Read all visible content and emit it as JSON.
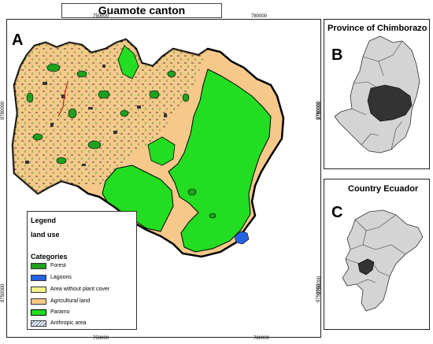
{
  "title": "Guamote canton",
  "panel_a": {
    "letter": "A",
    "top_ticks": [
      "750000",
      "780000"
    ],
    "bottom_ticks": [
      "750000",
      "780000"
    ],
    "left_ticks": [
      "9780000",
      "9750000"
    ],
    "right_ticks": [
      "9780000",
      "9750000"
    ]
  },
  "panel_b": {
    "letter": "B",
    "title": "Province of Chimborazo"
  },
  "panel_c": {
    "letter": "C",
    "title": "Country Ecuador"
  },
  "legend": {
    "heading": "Legend",
    "subheading": "land use",
    "categories_label": "Categories",
    "items": [
      {
        "label": "Forest",
        "color": "#1fa01f"
      },
      {
        "label": "Lagoons",
        "color": "#2463e0"
      },
      {
        "label": "Area without plant cover",
        "color": "#f2ee8a"
      },
      {
        "label": "Agricultural land",
        "color": "#f6c98a"
      },
      {
        "label": "Paramo",
        "color": "#22dd22"
      },
      {
        "label": "Anthropic area",
        "color": "hatch"
      }
    ]
  },
  "colors": {
    "paramo": "#22dd22",
    "agricultural": "#f6c98a",
    "forest": "#1fa01f",
    "lagoon": "#2463e0",
    "highlight": "#333333",
    "province_fill": "#d4d4d4"
  }
}
